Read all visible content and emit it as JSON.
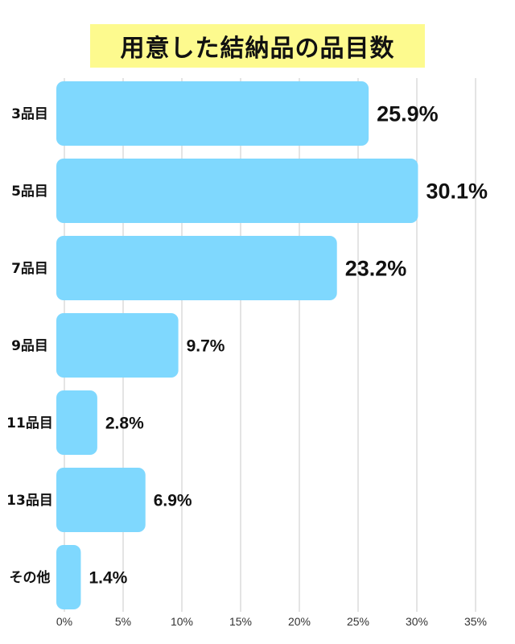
{
  "chart_data": {
    "type": "bar",
    "orientation": "horizontal",
    "title": "用意した結納品の品目数",
    "categories": [
      "3品目",
      "5品目",
      "7品目",
      "9品目",
      "11品目",
      "13品目",
      "その他"
    ],
    "values": [
      25.9,
      30.1,
      23.2,
      9.7,
      2.8,
      6.9,
      1.4
    ],
    "value_labels": [
      "25.9%",
      "30.1%",
      "23.2%",
      "9.7%",
      "2.8%",
      "6.9%",
      "1.4%"
    ],
    "xlim": [
      0,
      35
    ],
    "x_ticks": [
      "0%",
      "5%",
      "10%",
      "15%",
      "20%",
      "25%",
      "30%",
      "35%"
    ],
    "grid": true,
    "legend": "none",
    "colors": {
      "bar": "#7fd8fe",
      "grid": "#c8c8c8",
      "title_background": "#fdfa8e"
    }
  }
}
